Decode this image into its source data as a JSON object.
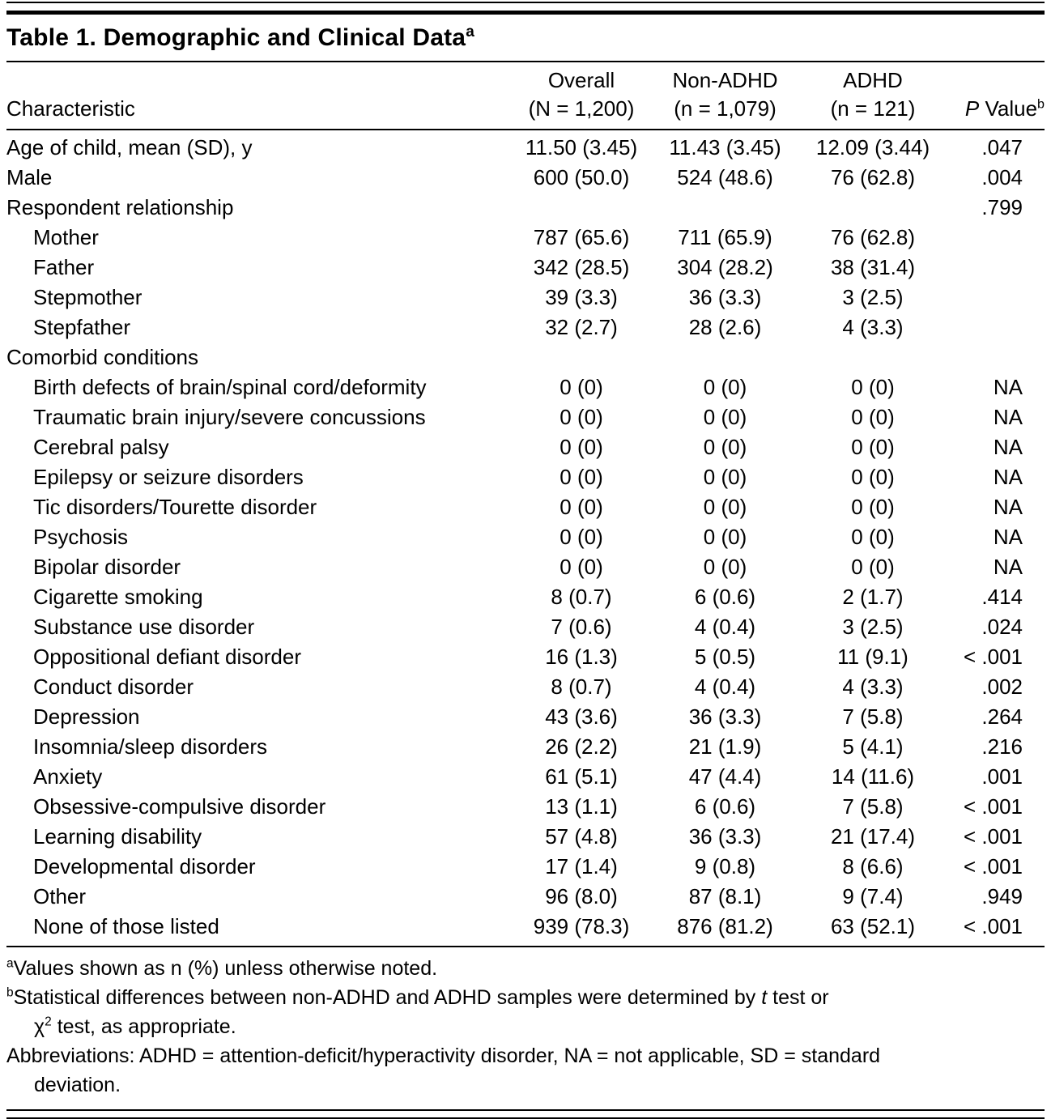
{
  "table": {
    "title": "Table 1. Demographic and Clinical Data",
    "title_sup": "a",
    "header": {
      "characteristic": "Characteristic",
      "overall": {
        "line1": "Overall",
        "line2": "(N = 1,200)"
      },
      "non_adhd": {
        "line1": "Non-ADHD",
        "line2": "(n = 1,079)"
      },
      "adhd": {
        "line1": "ADHD",
        "line2": "(n = 121)"
      },
      "p_value": {
        "italic": "P",
        "rest": " Value",
        "sup": "b"
      }
    },
    "rows": [
      {
        "label": "Age of child, mean (SD), y",
        "indent": 0,
        "overall": "11.50 (3.45)",
        "non_adhd": "11.43 (3.45)",
        "adhd": "12.09 (3.44)",
        "p": ".047"
      },
      {
        "label": "Male",
        "indent": 0,
        "overall": "600 (50.0)",
        "non_adhd": "524 (48.6)",
        "adhd": "76 (62.8)",
        "p": ".004"
      },
      {
        "label": "Respondent relationship",
        "indent": 0,
        "overall": "",
        "non_adhd": "",
        "adhd": "",
        "p": ".799"
      },
      {
        "label": "Mother",
        "indent": 1,
        "overall": "787 (65.6)",
        "non_adhd": "711 (65.9)",
        "adhd": "76 (62.8)",
        "p": ""
      },
      {
        "label": "Father",
        "indent": 1,
        "overall": "342 (28.5)",
        "non_adhd": "304 (28.2)",
        "adhd": "38 (31.4)",
        "p": ""
      },
      {
        "label": "Stepmother",
        "indent": 1,
        "overall": "39 (3.3)",
        "non_adhd": "36 (3.3)",
        "adhd": "3 (2.5)",
        "p": ""
      },
      {
        "label": "Stepfather",
        "indent": 1,
        "overall": "32 (2.7)",
        "non_adhd": "28 (2.6)",
        "adhd": "4 (3.3)",
        "p": ""
      },
      {
        "label": "Comorbid conditions",
        "indent": 0,
        "overall": "",
        "non_adhd": "",
        "adhd": "",
        "p": ""
      },
      {
        "label": "Birth defects of brain/spinal cord/deformity",
        "indent": 1,
        "overall": "0 (0)",
        "non_adhd": "0 (0)",
        "adhd": "0 (0)",
        "p": "NA"
      },
      {
        "label": "Traumatic brain injury/severe concussions",
        "indent": 1,
        "overall": "0 (0)",
        "non_adhd": "0 (0)",
        "adhd": "0 (0)",
        "p": "NA"
      },
      {
        "label": "Cerebral palsy",
        "indent": 1,
        "overall": "0 (0)",
        "non_adhd": "0 (0)",
        "adhd": "0 (0)",
        "p": "NA"
      },
      {
        "label": "Epilepsy or seizure disorders",
        "indent": 1,
        "overall": "0 (0)",
        "non_adhd": "0 (0)",
        "adhd": "0 (0)",
        "p": "NA"
      },
      {
        "label": "Tic disorders/Tourette disorder",
        "indent": 1,
        "overall": "0 (0)",
        "non_adhd": "0 (0)",
        "adhd": "0 (0)",
        "p": "NA"
      },
      {
        "label": "Psychosis",
        "indent": 1,
        "overall": "0 (0)",
        "non_adhd": "0 (0)",
        "adhd": "0 (0)",
        "p": "NA"
      },
      {
        "label": "Bipolar disorder",
        "indent": 1,
        "overall": "0 (0)",
        "non_adhd": "0 (0)",
        "adhd": "0 (0)",
        "p": "NA"
      },
      {
        "label": "Cigarette smoking",
        "indent": 1,
        "overall": "8 (0.7)",
        "non_adhd": "6 (0.6)",
        "adhd": "2 (1.7)",
        "p": ".414"
      },
      {
        "label": "Substance use disorder",
        "indent": 1,
        "overall": "7 (0.6)",
        "non_adhd": "4 (0.4)",
        "adhd": "3 (2.5)",
        "p": ".024"
      },
      {
        "label": "Oppositional defiant disorder",
        "indent": 1,
        "overall": "16 (1.3)",
        "non_adhd": "5 (0.5)",
        "adhd": "11 (9.1)",
        "p": "< .001"
      },
      {
        "label": "Conduct disorder",
        "indent": 1,
        "overall": "8 (0.7)",
        "non_adhd": "4 (0.4)",
        "adhd": "4 (3.3)",
        "p": ".002"
      },
      {
        "label": "Depression",
        "indent": 1,
        "overall": "43 (3.6)",
        "non_adhd": "36 (3.3)",
        "adhd": "7 (5.8)",
        "p": ".264"
      },
      {
        "label": "Insomnia/sleep disorders",
        "indent": 1,
        "overall": "26 (2.2)",
        "non_adhd": "21 (1.9)",
        "adhd": "5 (4.1)",
        "p": ".216"
      },
      {
        "label": "Anxiety",
        "indent": 1,
        "overall": "61 (5.1)",
        "non_adhd": "47 (4.4)",
        "adhd": "14 (11.6)",
        "p": ".001"
      },
      {
        "label": "Obsessive-compulsive disorder",
        "indent": 1,
        "overall": "13 (1.1)",
        "non_adhd": "6 (0.6)",
        "adhd": "7 (5.8)",
        "p": "< .001"
      },
      {
        "label": "Learning disability",
        "indent": 1,
        "overall": "57 (4.8)",
        "non_adhd": "36 (3.3)",
        "adhd": "21 (17.4)",
        "p": "< .001"
      },
      {
        "label": "Developmental disorder",
        "indent": 1,
        "overall": "17 (1.4)",
        "non_adhd": "9 (0.8)",
        "adhd": "8 (6.6)",
        "p": "< .001"
      },
      {
        "label": "Other",
        "indent": 1,
        "overall": "96 (8.0)",
        "non_adhd": "87 (8.1)",
        "adhd": "9 (7.4)",
        "p": ".949"
      },
      {
        "label": "None of those listed",
        "indent": 1,
        "overall": "939 (78.3)",
        "non_adhd": "876 (81.2)",
        "adhd": "63 (52.1)",
        "p": "< .001"
      }
    ]
  },
  "footnotes": {
    "a": {
      "marker": "a",
      "text": "Values shown as n (%) unless otherwise noted."
    },
    "b": {
      "marker": "b",
      "line1_pre": "Statistical differences between non-ADHD and ADHD samples were determined by ",
      "line1_italic": "t",
      "line1_post": " test or",
      "line2_chi": "χ",
      "line2_sup": "2",
      "line2_post": " test, as appropriate."
    },
    "abbreviations": {
      "line1": "Abbreviations: ADHD = attention-deficit/hyperactivity disorder, NA = not applicable, SD = standard",
      "line2": "deviation."
    }
  },
  "colors": {
    "text": "#000000",
    "background": "#ffffff",
    "rule": "#000000"
  }
}
